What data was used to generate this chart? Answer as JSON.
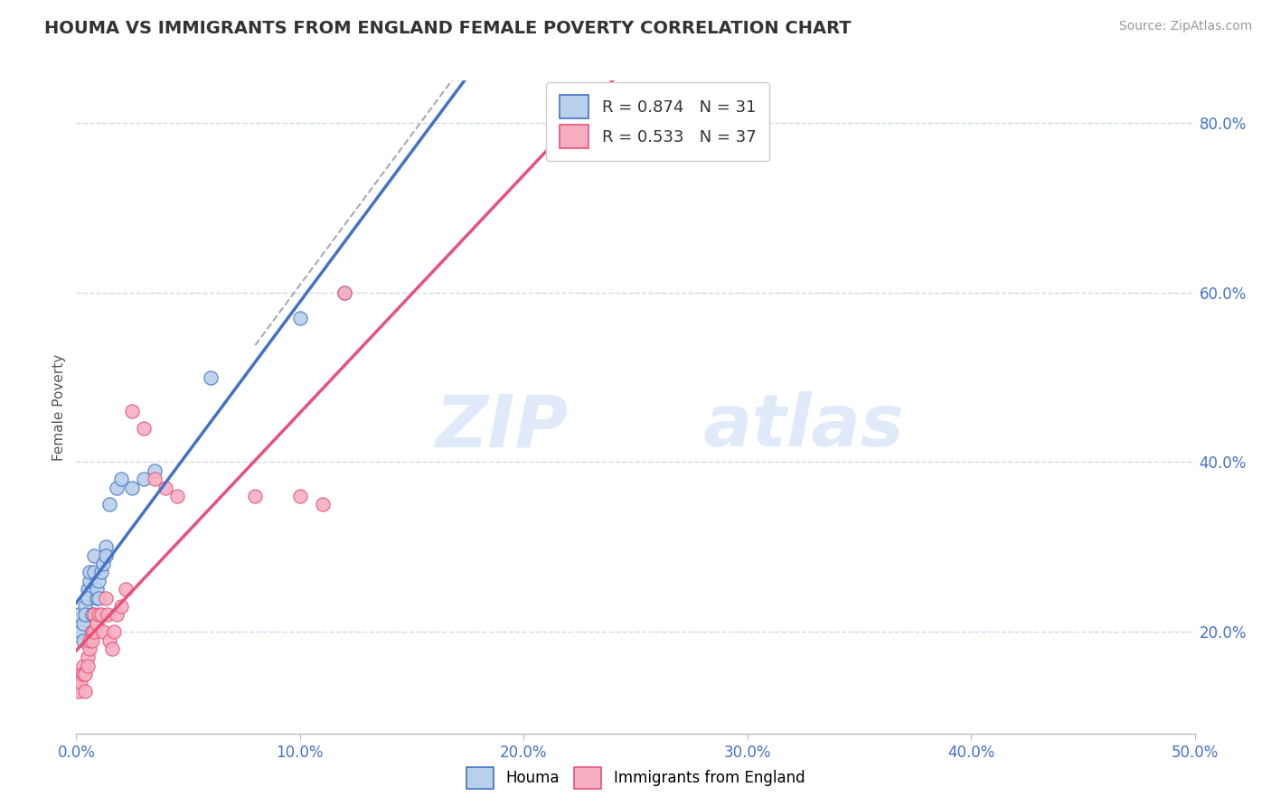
{
  "title": "HOUMA VS IMMIGRANTS FROM ENGLAND FEMALE POVERTY CORRELATION CHART",
  "source_text": "Source: ZipAtlas.com",
  "ylabel": "Female Poverty",
  "xlim": [
    0.0,
    0.5
  ],
  "ylim": [
    0.08,
    0.85
  ],
  "xtick_labels": [
    "0.0%",
    "10.0%",
    "20.0%",
    "30.0%",
    "40.0%",
    "50.0%"
  ],
  "xtick_vals": [
    0.0,
    0.1,
    0.2,
    0.3,
    0.4,
    0.5
  ],
  "ytick_labels": [
    "20.0%",
    "40.0%",
    "60.0%",
    "80.0%"
  ],
  "ytick_vals": [
    0.2,
    0.4,
    0.6,
    0.8
  ],
  "legend_r1": "R = 0.874   N = 31",
  "legend_r2": "R = 0.533   N = 37",
  "houma_color": "#b8d0ea",
  "england_color": "#f5afc0",
  "houma_scatter": [
    [
      0.001,
      0.22
    ],
    [
      0.002,
      0.2
    ],
    [
      0.003,
      0.21
    ],
    [
      0.003,
      0.19
    ],
    [
      0.004,
      0.23
    ],
    [
      0.004,
      0.22
    ],
    [
      0.005,
      0.25
    ],
    [
      0.005,
      0.24
    ],
    [
      0.006,
      0.26
    ],
    [
      0.006,
      0.27
    ],
    [
      0.007,
      0.2
    ],
    [
      0.007,
      0.22
    ],
    [
      0.008,
      0.29
    ],
    [
      0.008,
      0.27
    ],
    [
      0.009,
      0.24
    ],
    [
      0.009,
      0.25
    ],
    [
      0.01,
      0.24
    ],
    [
      0.01,
      0.26
    ],
    [
      0.011,
      0.27
    ],
    [
      0.012,
      0.28
    ],
    [
      0.013,
      0.3
    ],
    [
      0.013,
      0.29
    ],
    [
      0.015,
      0.35
    ],
    [
      0.018,
      0.37
    ],
    [
      0.02,
      0.38
    ],
    [
      0.025,
      0.37
    ],
    [
      0.03,
      0.38
    ],
    [
      0.035,
      0.39
    ],
    [
      0.06,
      0.5
    ],
    [
      0.1,
      0.57
    ],
    [
      0.12,
      0.6
    ]
  ],
  "england_scatter": [
    [
      0.001,
      0.14
    ],
    [
      0.001,
      0.13
    ],
    [
      0.002,
      0.15
    ],
    [
      0.002,
      0.14
    ],
    [
      0.003,
      0.16
    ],
    [
      0.003,
      0.15
    ],
    [
      0.004,
      0.15
    ],
    [
      0.004,
      0.13
    ],
    [
      0.005,
      0.17
    ],
    [
      0.005,
      0.16
    ],
    [
      0.006,
      0.18
    ],
    [
      0.006,
      0.19
    ],
    [
      0.007,
      0.2
    ],
    [
      0.007,
      0.19
    ],
    [
      0.008,
      0.22
    ],
    [
      0.008,
      0.2
    ],
    [
      0.009,
      0.21
    ],
    [
      0.01,
      0.22
    ],
    [
      0.011,
      0.22
    ],
    [
      0.012,
      0.2
    ],
    [
      0.013,
      0.24
    ],
    [
      0.014,
      0.22
    ],
    [
      0.015,
      0.19
    ],
    [
      0.016,
      0.18
    ],
    [
      0.017,
      0.2
    ],
    [
      0.018,
      0.22
    ],
    [
      0.02,
      0.23
    ],
    [
      0.022,
      0.25
    ],
    [
      0.025,
      0.46
    ],
    [
      0.03,
      0.44
    ],
    [
      0.035,
      0.38
    ],
    [
      0.04,
      0.37
    ],
    [
      0.045,
      0.36
    ],
    [
      0.08,
      0.36
    ],
    [
      0.1,
      0.36
    ],
    [
      0.11,
      0.35
    ],
    [
      0.12,
      0.6
    ]
  ],
  "houma_line_color": "#4472c4",
  "england_line_color": "#e8507a",
  "watermark_zip": "ZIP",
  "watermark_atlas": "atlas",
  "background_color": "#ffffff",
  "grid_color": "#d0daea",
  "title_color": "#333333",
  "axis_label_color": "#4472c4",
  "ylabel_color": "#555555"
}
